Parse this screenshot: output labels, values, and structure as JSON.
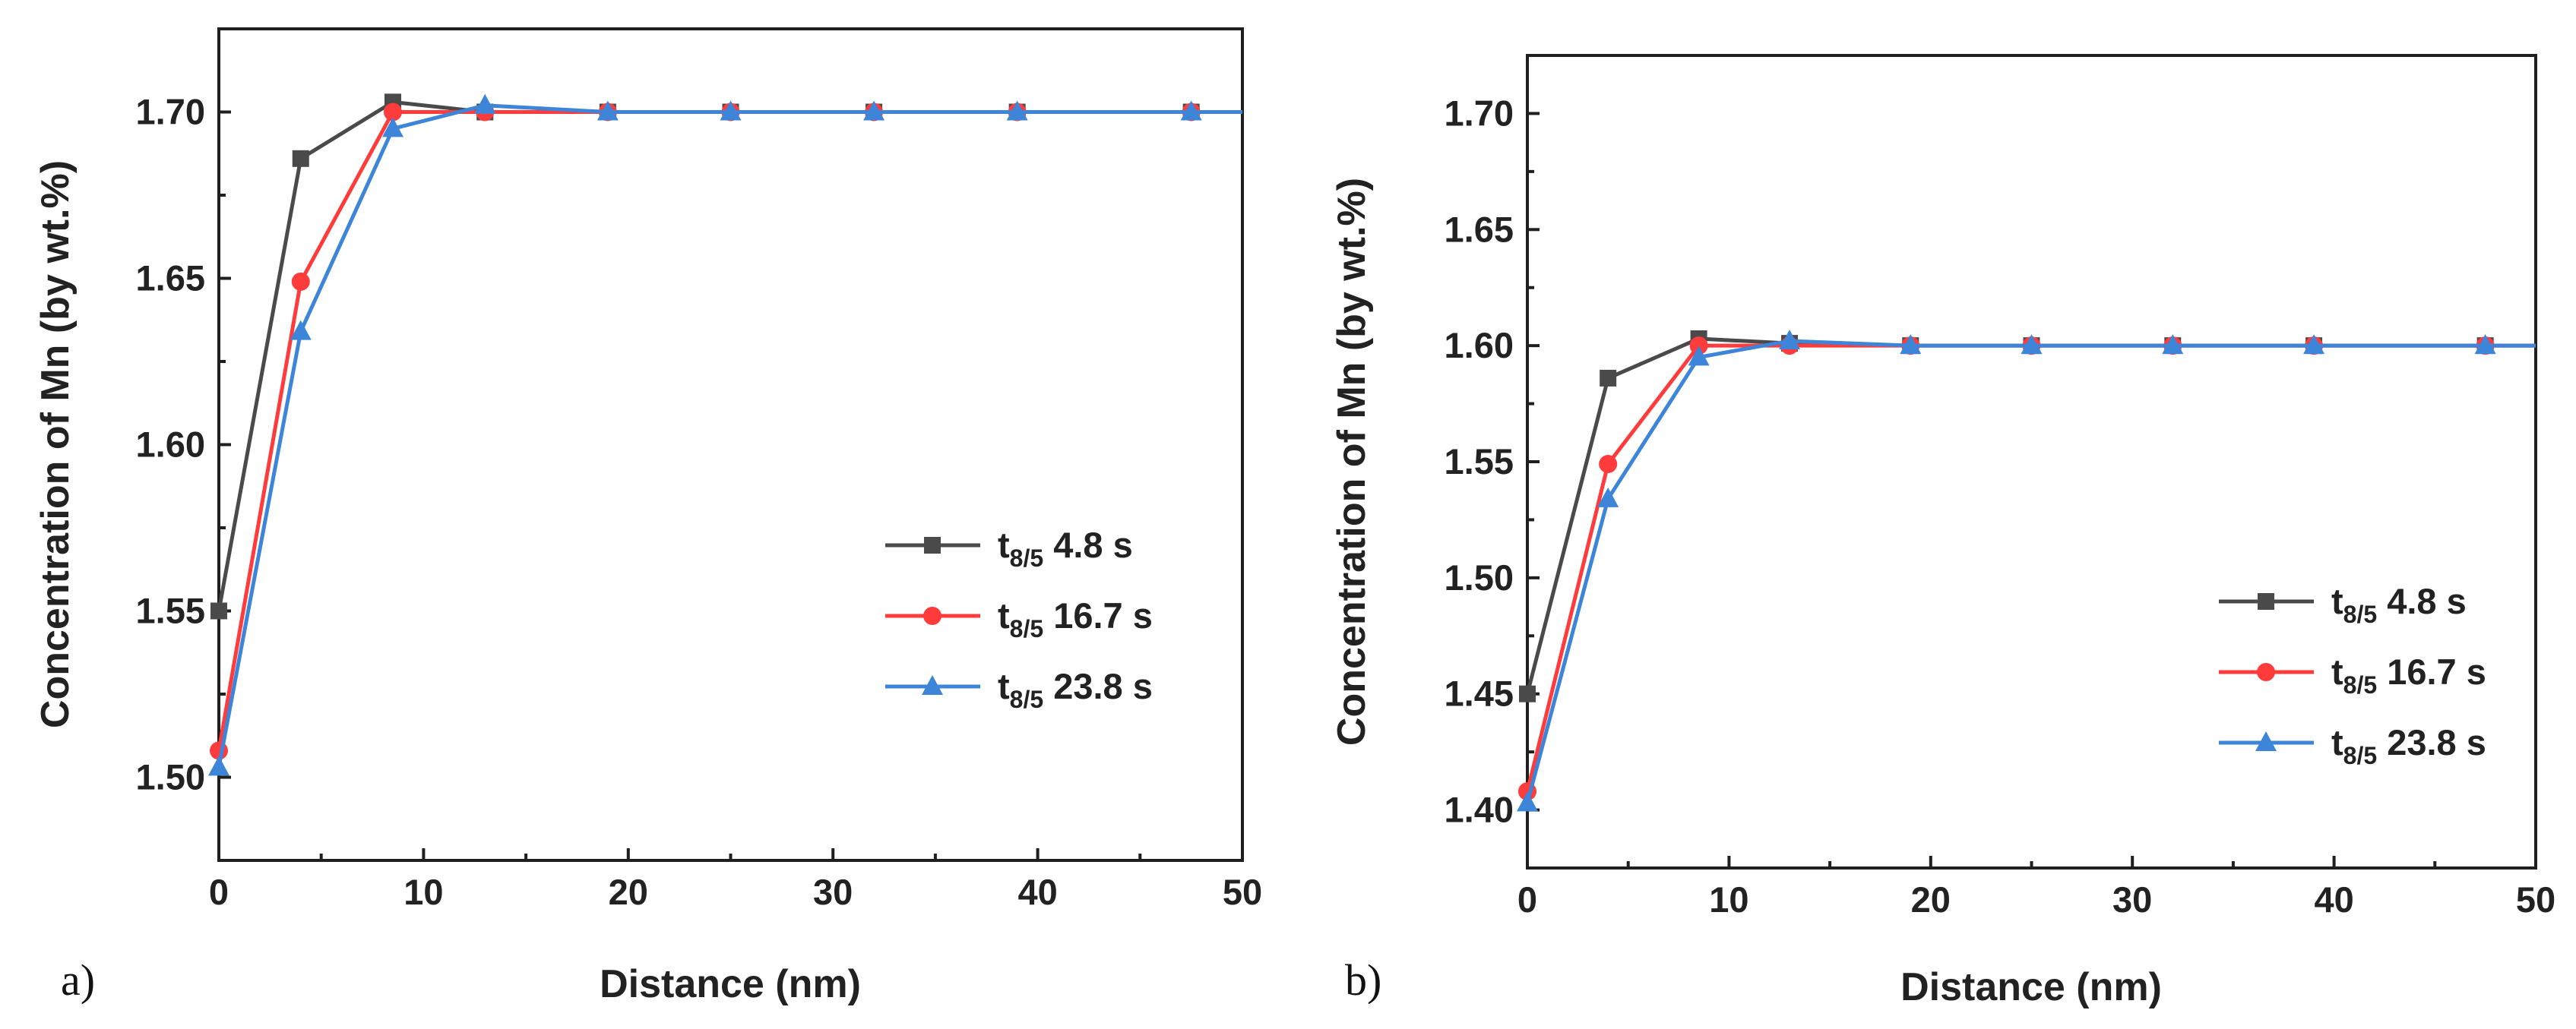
{
  "chart_data": [
    {
      "panel_label": "a)",
      "type": "line",
      "xlabel": "Distance (nm)",
      "ylabel": "Concentration of Mn (by wt.%)",
      "xlim": [
        0,
        50
      ],
      "ylim": [
        1.475,
        1.725
      ],
      "xticks": [
        0,
        10,
        20,
        30,
        40,
        50
      ],
      "xtick_labels": [
        "0",
        "10",
        "20",
        "30",
        "40",
        "50"
      ],
      "yticks": [
        1.5,
        1.55,
        1.6,
        1.65,
        1.7
      ],
      "ytick_labels": [
        "1.50",
        "1.55",
        "1.60",
        "1.65",
        "1.70"
      ],
      "legend_position": "center-right",
      "series": [
        {
          "name": "t8/5 4.8 s",
          "label_main": "t",
          "label_sub": "8/5",
          "label_rest": " 4.8 s",
          "color": "#4a4a4a",
          "marker": "square",
          "x": [
            0,
            4,
            8.5,
            13,
            19,
            25,
            32,
            39,
            47.5,
            50
          ],
          "y": [
            1.55,
            1.686,
            1.703,
            1.7,
            1.7,
            1.7,
            1.7,
            1.7,
            1.7,
            1.7
          ]
        },
        {
          "name": "t8/5 16.7 s",
          "label_main": "t",
          "label_sub": "8/5",
          "label_rest": " 16.7 s",
          "color": "#ff3b3b",
          "marker": "circle",
          "x": [
            0,
            4,
            8.5,
            13,
            19,
            25,
            32,
            39,
            47.5,
            50
          ],
          "y": [
            1.508,
            1.649,
            1.7,
            1.7,
            1.7,
            1.7,
            1.7,
            1.7,
            1.7,
            1.7
          ]
        },
        {
          "name": "t8/5 23.8 s",
          "label_main": "t",
          "label_sub": "8/5",
          "label_rest": " 23.8 s",
          "color": "#3d85d8",
          "marker": "triangle",
          "x": [
            0,
            4,
            8.5,
            13,
            19,
            25,
            32,
            39,
            47.5,
            50
          ],
          "y": [
            1.503,
            1.634,
            1.695,
            1.702,
            1.7,
            1.7,
            1.7,
            1.7,
            1.7,
            1.7
          ]
        }
      ]
    },
    {
      "panel_label": "b)",
      "type": "line",
      "xlabel": "Distance (nm)",
      "ylabel": "Concentration of Mn (by wt.%)",
      "xlim": [
        0,
        50
      ],
      "ylim": [
        1.375,
        1.725
      ],
      "xticks": [
        0,
        10,
        20,
        30,
        40,
        50
      ],
      "xtick_labels": [
        "0",
        "10",
        "20",
        "30",
        "40",
        "50"
      ],
      "yticks": [
        1.4,
        1.45,
        1.5,
        1.55,
        1.6,
        1.65,
        1.7
      ],
      "ytick_labels": [
        "1.40",
        "1.45",
        "1.50",
        "1.55",
        "1.60",
        "1.65",
        "1.70"
      ],
      "legend_position": "center-right",
      "series": [
        {
          "name": "t8/5 4.8 s",
          "label_main": "t",
          "label_sub": "8/5",
          "label_rest": " 4.8 s",
          "color": "#4a4a4a",
          "marker": "square",
          "x": [
            0,
            4,
            8.5,
            13,
            19,
            25,
            32,
            39,
            47.5,
            50
          ],
          "y": [
            1.45,
            1.586,
            1.603,
            1.601,
            1.6,
            1.6,
            1.6,
            1.6,
            1.6,
            1.6
          ]
        },
        {
          "name": "t8/5 16.7 s",
          "label_main": "t",
          "label_sub": "8/5",
          "label_rest": " 16.7 s",
          "color": "#ff3b3b",
          "marker": "circle",
          "x": [
            0,
            4,
            8.5,
            13,
            19,
            25,
            32,
            39,
            47.5,
            50
          ],
          "y": [
            1.408,
            1.549,
            1.6,
            1.6,
            1.6,
            1.6,
            1.6,
            1.6,
            1.6,
            1.6
          ]
        },
        {
          "name": "t8/5 23.8 s",
          "label_main": "t",
          "label_sub": "8/5",
          "label_rest": " 23.8 s",
          "color": "#3d85d8",
          "marker": "triangle",
          "x": [
            0,
            4,
            8.5,
            13,
            19,
            25,
            32,
            39,
            47.5,
            50
          ],
          "y": [
            1.403,
            1.534,
            1.595,
            1.602,
            1.6,
            1.6,
            1.6,
            1.6,
            1.6,
            1.6
          ]
        }
      ]
    }
  ]
}
